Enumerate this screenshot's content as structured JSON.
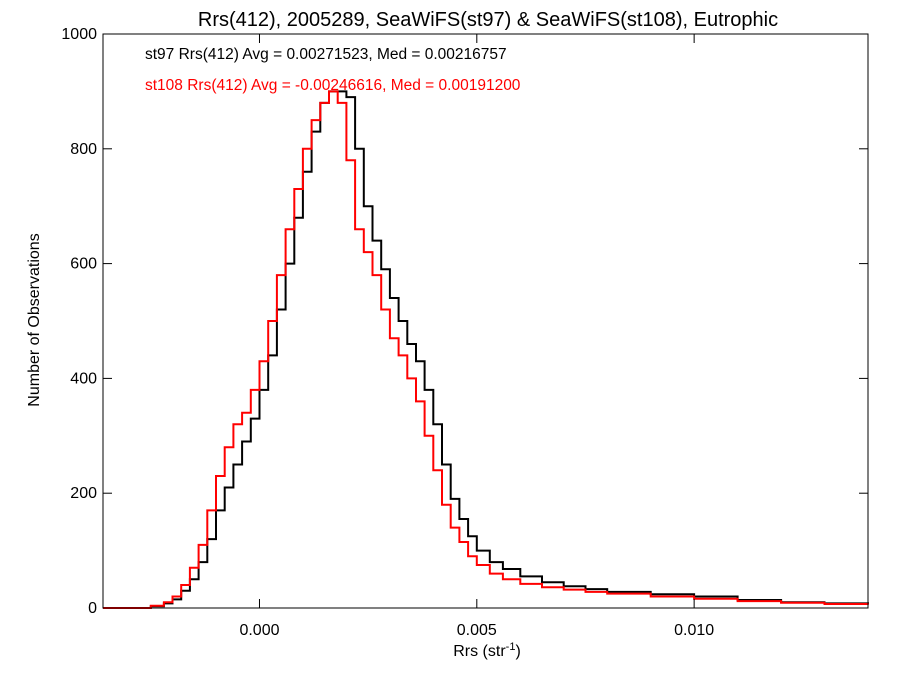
{
  "chart_data": {
    "type": "line",
    "title": "Rrs(412), 2005289, SeaWiFS(st97) & SeaWiFS(st108), Eutrophic",
    "xlabel_main": "Rrs (str",
    "xlabel_sup": "-1",
    "xlabel_close": ")",
    "ylabel": "Number of Observations",
    "xlim": [
      -0.0036,
      0.014
    ],
    "ylim": [
      0,
      1000
    ],
    "xticks": [
      0.0,
      0.005,
      0.01
    ],
    "xtick_labels": [
      "0.000",
      "0.005",
      "0.010"
    ],
    "yticks": [
      0,
      200,
      400,
      600,
      800,
      1000
    ],
    "ytick_labels": [
      "0",
      "200",
      "400",
      "600",
      "800",
      "1000"
    ],
    "grid": false,
    "annotations": [
      "st97 Rrs(412) Avg = 0.00271523, Med = 0.00216757",
      "st108 Rrs(412) Avg = -0.00246616, Med = 0.00191200"
    ],
    "series": [
      {
        "color": "#000000",
        "x": [
          -0.0036,
          -0.003,
          -0.0025,
          -0.0022,
          -0.002,
          -0.0018,
          -0.0016,
          -0.0014,
          -0.0012,
          -0.001,
          -0.0008,
          -0.0006,
          -0.0004,
          -0.0002,
          0.0,
          0.0002,
          0.0004,
          0.0006,
          0.0008,
          0.001,
          0.0012,
          0.0014,
          0.0016,
          0.0018,
          0.002,
          0.0022,
          0.0024,
          0.0026,
          0.0028,
          0.003,
          0.0032,
          0.0034,
          0.0036,
          0.0038,
          0.004,
          0.0042,
          0.0044,
          0.0046,
          0.0048,
          0.005,
          0.0053,
          0.0056,
          0.006,
          0.0065,
          0.007,
          0.0075,
          0.008,
          0.009,
          0.01,
          0.011,
          0.012,
          0.013,
          0.014
        ],
        "y": [
          0,
          0,
          3,
          8,
          15,
          30,
          50,
          80,
          120,
          170,
          210,
          250,
          290,
          330,
          380,
          440,
          520,
          600,
          680,
          760,
          830,
          880,
          900,
          900,
          890,
          800,
          700,
          640,
          590,
          540,
          500,
          460,
          430,
          380,
          320,
          250,
          190,
          155,
          125,
          100,
          80,
          68,
          55,
          45,
          38,
          33,
          28,
          24,
          20,
          14,
          10,
          8,
          7
        ]
      },
      {
        "color": "#ff0000",
        "x": [
          -0.0036,
          -0.003,
          -0.0025,
          -0.0022,
          -0.002,
          -0.0018,
          -0.0016,
          -0.0014,
          -0.0012,
          -0.001,
          -0.0008,
          -0.0006,
          -0.0004,
          -0.0002,
          0.0,
          0.0002,
          0.0004,
          0.0006,
          0.0008,
          0.001,
          0.0012,
          0.0014,
          0.0016,
          0.0018,
          0.002,
          0.0022,
          0.0024,
          0.0026,
          0.0028,
          0.003,
          0.0032,
          0.0034,
          0.0036,
          0.0038,
          0.004,
          0.0042,
          0.0044,
          0.0046,
          0.0048,
          0.005,
          0.0053,
          0.0056,
          0.006,
          0.0065,
          0.007,
          0.0075,
          0.008,
          0.009,
          0.01,
          0.011,
          0.012,
          0.013,
          0.014
        ],
        "y": [
          0,
          0,
          4,
          10,
          20,
          40,
          70,
          110,
          170,
          230,
          280,
          320,
          340,
          380,
          430,
          500,
          580,
          660,
          730,
          800,
          850,
          880,
          900,
          880,
          780,
          660,
          620,
          580,
          520,
          470,
          440,
          400,
          360,
          300,
          240,
          180,
          140,
          115,
          90,
          75,
          60,
          50,
          42,
          36,
          32,
          28,
          25,
          20,
          16,
          12,
          9,
          7,
          6
        ]
      }
    ]
  }
}
